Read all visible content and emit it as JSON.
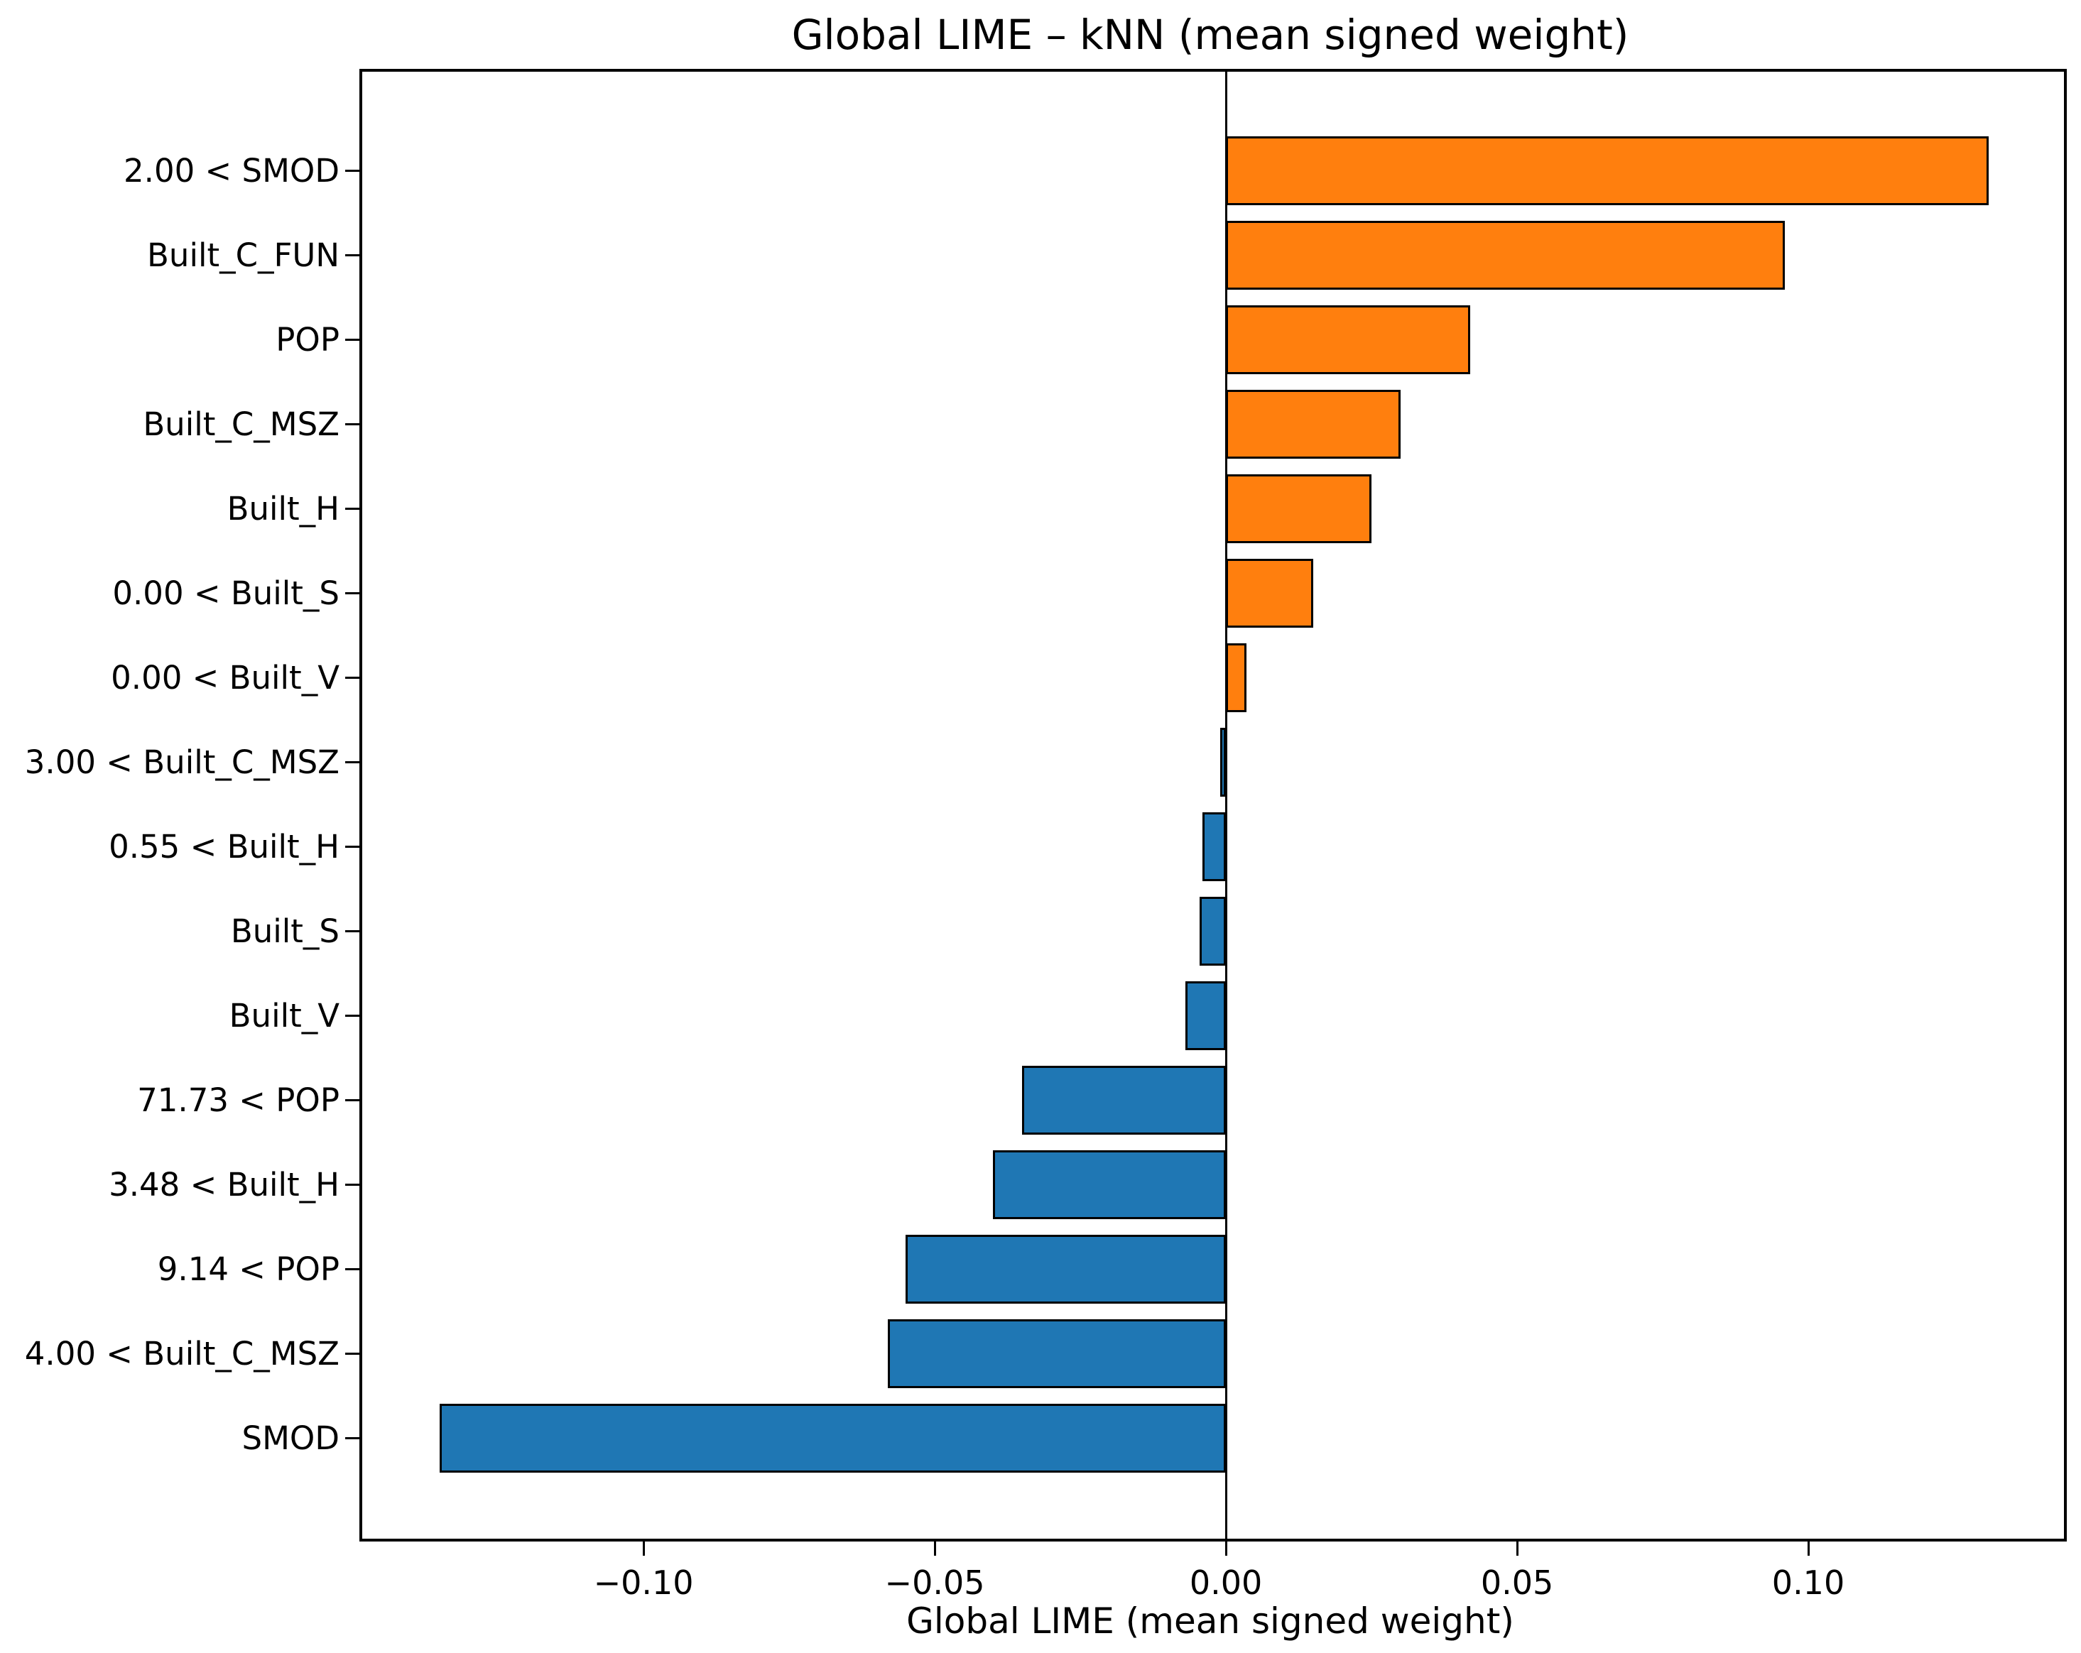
{
  "chart_data": {
    "type": "bar",
    "orientation": "horizontal",
    "title": "Global LIME – kNN (mean signed weight)",
    "xlabel": "Global LIME (mean signed weight)",
    "ylabel": "",
    "categories": [
      "2.00 < SMOD",
      "Built_C_FUN",
      "POP",
      "Built_C_MSZ",
      "Built_H",
      "0.00 < Built_S",
      "0.00 < Built_V",
      "3.00 < Built_C_MSZ",
      "0.55 < Built_H",
      "Built_S",
      "Built_V",
      "71.73 < POP",
      "3.48 < Built_H",
      "9.14 < POP",
      "4.00 < Built_C_MSZ",
      "SMOD"
    ],
    "values": [
      0.131,
      0.096,
      0.042,
      0.03,
      0.025,
      0.015,
      0.0035,
      -0.001,
      -0.004,
      -0.0045,
      -0.007,
      -0.035,
      -0.04,
      -0.055,
      -0.058,
      -0.135
    ],
    "xlim": [
      -0.1483,
      0.1439
    ],
    "x_ticks": [
      {
        "value": -0.1,
        "label": "−0.10"
      },
      {
        "value": -0.05,
        "label": "−0.05"
      },
      {
        "value": 0.0,
        "label": "0.00"
      },
      {
        "value": 0.05,
        "label": "0.05"
      },
      {
        "value": 0.1,
        "label": "0.10"
      }
    ],
    "grid": false,
    "legend": null,
    "colors": {
      "positive_bar": "#ff7f0e",
      "negative_bar": "#1f77b4",
      "bar_edge": "#000000",
      "axis": "#000000",
      "background": "#ffffff"
    }
  }
}
